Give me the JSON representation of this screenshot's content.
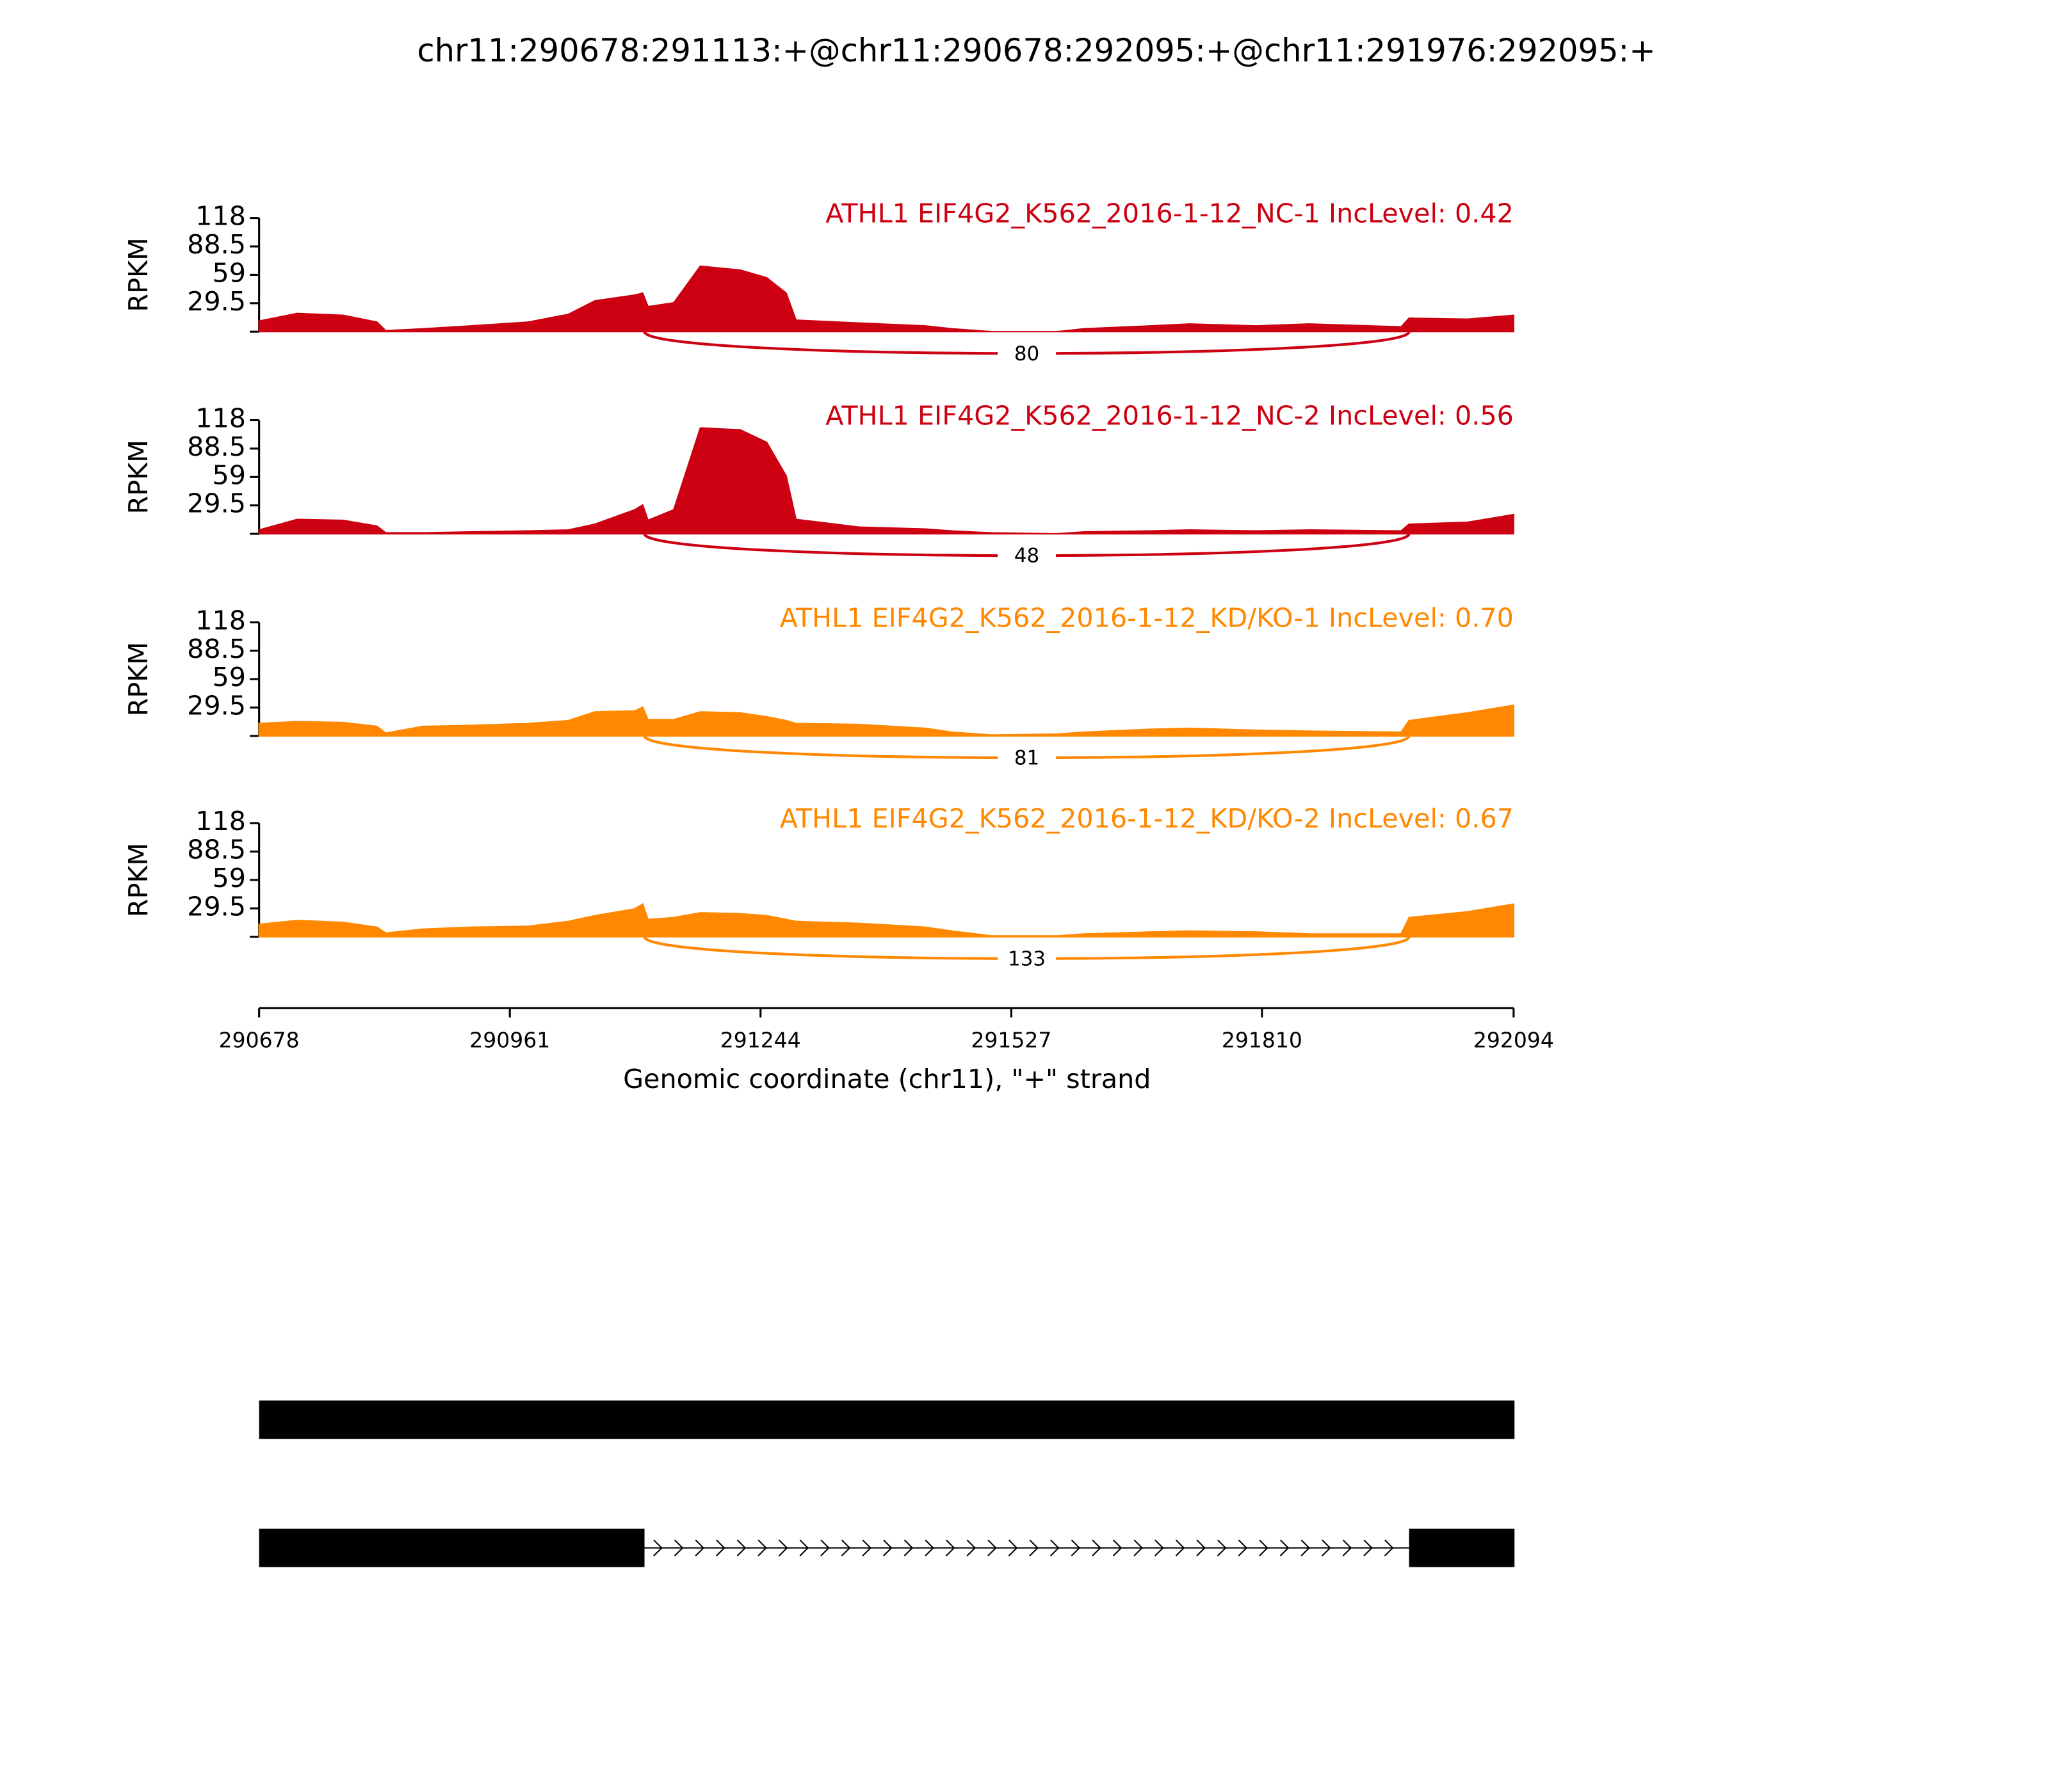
{
  "chart_data": {
    "type": "sashimi",
    "title": "chr11:290678:291113:+@chr11:290678:292095:+@chr11:291976:292095:+",
    "y_label": "RPKM",
    "x_label": "Genomic coordinate (chr11), \"+\" strand",
    "xlim": [
      290678,
      292094
    ],
    "xticks": [
      290678,
      290961,
      291244,
      291527,
      291810,
      292094
    ],
    "ylim": [
      0,
      118
    ],
    "yticks": [
      29.5,
      59,
      88.5,
      118
    ],
    "x": [
      290678,
      290721,
      290773,
      290811,
      290821,
      290863,
      290917,
      290982,
      291027,
      291057,
      291102,
      291111,
      291117,
      291146,
      291176,
      291221,
      291251,
      291273,
      291284,
      291355,
      291430,
      291460,
      291505,
      291579,
      291609,
      291684,
      291728,
      291803,
      291863,
      291967,
      291976,
      292042,
      292094
    ],
    "series": [
      {
        "name": "ATHL1 EIF4G2_K562_2016-1-12_NC-1 IncLevel: 0.42",
        "color": "#cc0011",
        "values": [
          11,
          19,
          17,
          10,
          1,
          3,
          6,
          10,
          18,
          32,
          38,
          40,
          26,
          30,
          68,
          64,
          56,
          40,
          12,
          9,
          6,
          3,
          0,
          0,
          3,
          6,
          8,
          6,
          8,
          5,
          14,
          13,
          17
        ],
        "junctions": [
          {
            "start": 291113,
            "end": 291976,
            "count": 80
          }
        ]
      },
      {
        "name": "ATHL1 EIF4G2_K562_2016-1-12_NC-2 IncLevel: 0.56",
        "color": "#cc0011",
        "values": [
          4,
          15,
          14,
          8,
          1,
          1,
          2,
          3,
          4,
          10,
          25,
          30,
          14,
          25,
          110,
          108,
          95,
          60,
          15,
          7,
          5,
          3,
          1,
          0,
          2,
          3,
          4,
          3,
          4,
          3,
          10,
          12,
          20
        ],
        "junctions": [
          {
            "start": 291113,
            "end": 291976,
            "count": 48
          }
        ]
      },
      {
        "name": "ATHL1 EIF4G2_K562_2016-1-12_KD/KO-1 IncLevel: 0.70",
        "color": "#ff8800",
        "values": [
          13,
          15,
          14,
          10,
          3,
          10,
          11,
          13,
          16,
          25,
          26,
          30,
          17,
          17,
          25,
          24,
          20,
          16,
          13,
          12,
          8,
          4,
          1,
          2,
          4,
          7,
          8,
          6,
          5,
          4,
          16,
          24,
          32
        ],
        "junctions": [
          {
            "start": 291113,
            "end": 291976,
            "count": 81
          }
        ]
      },
      {
        "name": "ATHL1 EIF4G2_K562_2016-1-12_KD/KO-2 IncLevel: 0.67",
        "color": "#ff8800",
        "values": [
          13,
          17,
          15,
          10,
          4,
          8,
          10,
          11,
          16,
          22,
          29,
          34,
          18,
          20,
          25,
          24,
          22,
          18,
          16,
          14,
          10,
          6,
          1,
          1,
          3,
          5,
          6,
          5,
          3,
          3,
          20,
          26,
          34
        ],
        "junctions": [
          {
            "start": 291113,
            "end": 291976,
            "count": 133
          }
        ]
      }
    ],
    "transcripts": [
      {
        "exons": [
          [
            290678,
            292095
          ]
        ]
      },
      {
        "exons": [
          [
            290678,
            291113
          ],
          [
            291976,
            292095
          ]
        ]
      }
    ]
  }
}
